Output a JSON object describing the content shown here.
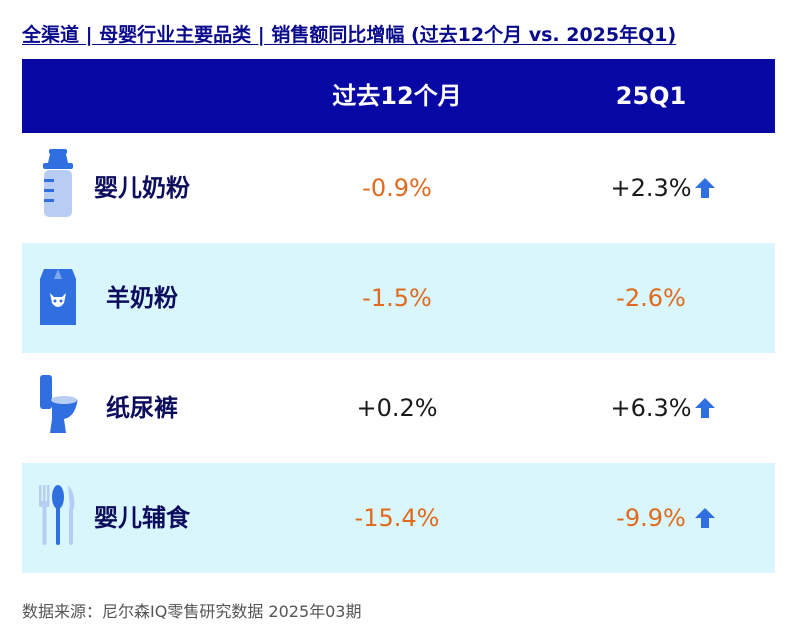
{
  "title": "全渠道 | 母婴行业主要品类 | 销售额同比增幅 (过去12个月 vs. 2025年Q1)",
  "source": "数据来源：尼尔森IQ零售研究数据 2025年03期",
  "colors": {
    "header_bg": "#0808a4",
    "row_alt_bg": "#d9f6fd",
    "negative": "#e06a1d",
    "arrow": "#2f6fe0"
  },
  "chart_data": {
    "type": "table",
    "columns": [
      "过去12个月",
      "25Q1"
    ],
    "rows": [
      {
        "category": "婴儿奶粉",
        "icon": "baby-bottle-icon",
        "past12m": "-0.9%",
        "q1": "+2.3%",
        "q1_arrow": true
      },
      {
        "category": "羊奶粉",
        "icon": "goat-milk-carton-icon",
        "past12m": "-1.5%",
        "q1": "-2.6%",
        "q1_arrow": false
      },
      {
        "category": "纸尿裤",
        "icon": "toilet-icon",
        "past12m": "+0.2%",
        "q1": "+6.3%",
        "q1_arrow": true
      },
      {
        "category": "婴儿辅食",
        "icon": "cutlery-icon",
        "past12m": "-15.4%",
        "q1": "-9.9%",
        "q1_arrow": true
      }
    ]
  }
}
